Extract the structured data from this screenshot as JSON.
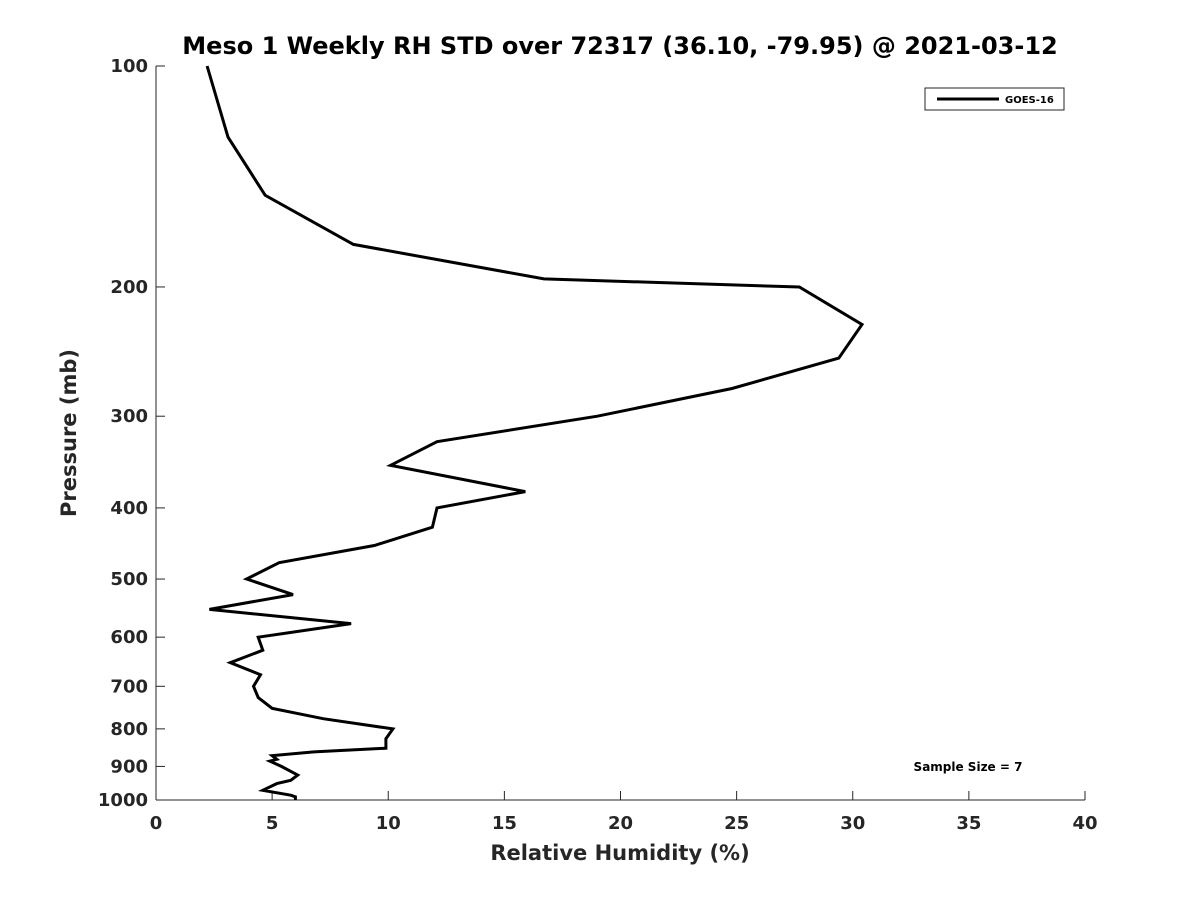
{
  "chart_data": {
    "type": "line",
    "title": "Meso 1 Weekly RH STD over 72317 (36.10, -79.95) @ 2021-03-12",
    "xlabel": "Relative Humidity (%)",
    "ylabel": "Pressure (mb)",
    "xlim": [
      0,
      40
    ],
    "ylim": [
      1000,
      100
    ],
    "yscale": "log",
    "y_reversed": true,
    "grid": false,
    "legend_position": "top-right",
    "x_ticks": [
      "0",
      "5",
      "10",
      "15",
      "20",
      "25",
      "30",
      "35",
      "40"
    ],
    "x_tick_values": [
      0,
      5,
      10,
      15,
      20,
      25,
      30,
      35,
      40
    ],
    "y_ticks": [
      "100",
      "200",
      "300",
      "400",
      "500",
      "600",
      "700",
      "800",
      "900",
      "1000"
    ],
    "y_tick_values": [
      100,
      200,
      300,
      400,
      500,
      600,
      700,
      800,
      900,
      1000
    ],
    "annotation": "Sample Size = 7",
    "series": [
      {
        "name": "GOES-16",
        "color": "#000000",
        "points": [
          [
            2.2,
            100
          ],
          [
            3.1,
            125
          ],
          [
            4.7,
            150
          ],
          [
            8.5,
            175
          ],
          [
            16.7,
            195
          ],
          [
            27.7,
            200
          ],
          [
            30.4,
            225
          ],
          [
            29.4,
            250
          ],
          [
            24.8,
            275
          ],
          [
            19.0,
            300
          ],
          [
            12.1,
            325
          ],
          [
            10.1,
            350
          ],
          [
            15.9,
            380
          ],
          [
            12.1,
            400
          ],
          [
            11.9,
            425
          ],
          [
            9.4,
            450
          ],
          [
            5.3,
            475
          ],
          [
            3.9,
            500
          ],
          [
            5.9,
            525
          ],
          [
            2.3,
            550
          ],
          [
            8.4,
            575
          ],
          [
            4.4,
            600
          ],
          [
            4.6,
            625
          ],
          [
            3.2,
            650
          ],
          [
            4.5,
            675
          ],
          [
            4.2,
            700
          ],
          [
            4.4,
            725
          ],
          [
            5.0,
            750
          ],
          [
            7.2,
            775
          ],
          [
            10.2,
            800
          ],
          [
            9.9,
            825
          ],
          [
            9.9,
            850
          ],
          [
            6.8,
            860
          ],
          [
            5.0,
            870
          ],
          [
            5.2,
            880
          ],
          [
            4.9,
            885
          ],
          [
            5.4,
            900
          ],
          [
            6.1,
            925
          ],
          [
            5.8,
            940
          ],
          [
            5.2,
            950
          ],
          [
            4.6,
            970
          ],
          [
            5.8,
            985
          ],
          [
            6.0,
            990
          ],
          [
            6.0,
            1000
          ]
        ]
      }
    ]
  }
}
